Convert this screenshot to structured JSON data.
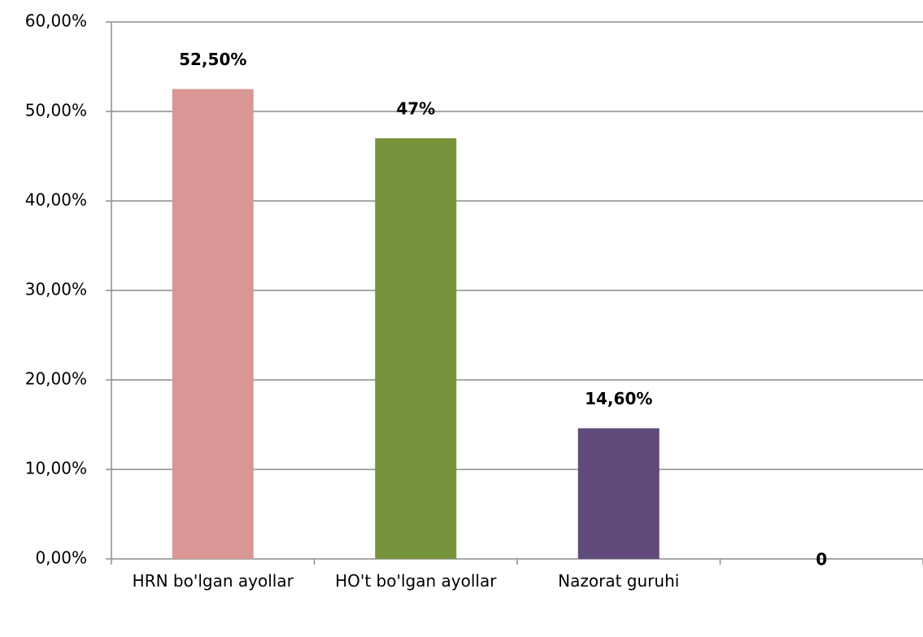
{
  "chart_data": {
    "type": "bar",
    "categories": [
      "HRN bo'lgan ayollar",
      "HO't bo'lgan ayollar",
      "Nazorat guruhi",
      null
    ],
    "values": [
      52.5,
      47,
      14.6,
      0
    ],
    "value_labels": [
      "52,50%",
      "47%",
      "14,60%",
      "0"
    ],
    "colors": [
      "#d99694",
      "#77933c",
      "#604a7b",
      "#4f81bd"
    ],
    "ylim": [
      0,
      60
    ],
    "yticks": [
      {
        "value": 0,
        "label": "0,00%"
      },
      {
        "value": 10,
        "label": "10,00%"
      },
      {
        "value": 20,
        "label": "20,00%"
      },
      {
        "value": 30,
        "label": "30,00%"
      },
      {
        "value": 40,
        "label": "40,00%"
      },
      {
        "value": 50,
        "label": "50,00%"
      },
      {
        "value": 60,
        "label": "60,00%"
      }
    ],
    "grid": true
  }
}
